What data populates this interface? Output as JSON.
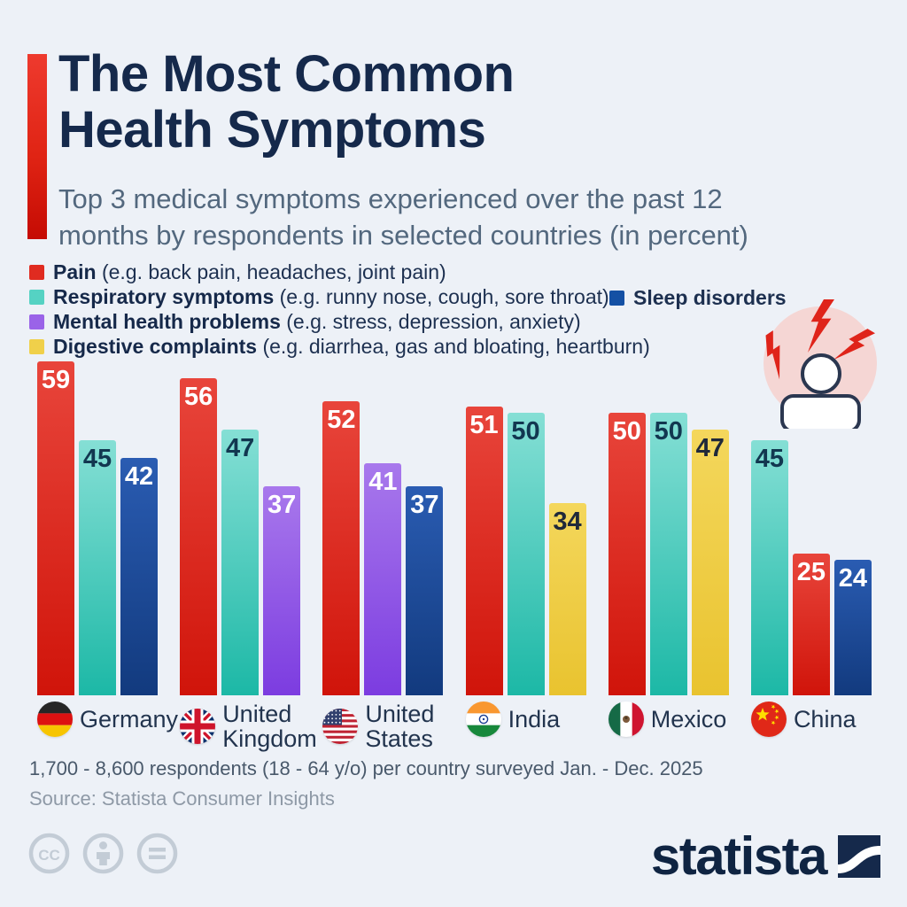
{
  "header": {
    "title_line1": "The Most Common",
    "title_line2": "Health Symptoms",
    "subtitle": "Top 3 medical symptoms experienced over the past 12\nmonths by respondents in selected countries (in percent)"
  },
  "legend": {
    "items": [
      {
        "label": "Pain",
        "desc": "(e.g. back pain, headaches, joint pain)",
        "color": "#e02b20"
      },
      {
        "label": "Respiratory symptoms",
        "desc": "(e.g. runny nose, cough, sore throat)",
        "color": "#55d2c3"
      },
      {
        "label": "Mental health problems",
        "desc": "(e.g. stress, depression, anxiety)",
        "color": "#9a63e8"
      },
      {
        "label": "Digestive complaints",
        "desc": "(e.g. diarrhea, gas and bloating, heartburn)",
        "color": "#f0d04a"
      }
    ],
    "right_item": {
      "label": "Sleep disorders",
      "color": "#1450a4"
    }
  },
  "chart_data": {
    "type": "bar",
    "unit": "percent",
    "ylim": [
      0,
      59
    ],
    "series_colors": {
      "Pain": {
        "top": "#e8453b",
        "bottom": "#d0140a",
        "text": "#ffffff"
      },
      "Respiratory symptoms": {
        "top": "#85dfd5",
        "bottom": "#1cb8a6",
        "text": "#123750"
      },
      "Mental health problems": {
        "top": "#a878ec",
        "bottom": "#7c3ce0",
        "text": "#ffffff"
      },
      "Digestive complaints": {
        "top": "#f4d75c",
        "bottom": "#e9c32f",
        "text": "#20293a"
      },
      "Sleep disorders": {
        "top": "#2a5cb2",
        "bottom": "#123a7e",
        "text": "#ffffff"
      }
    },
    "groups": [
      {
        "country": "Germany",
        "flag": "de",
        "bars": [
          {
            "series": "Pain",
            "value": 59
          },
          {
            "series": "Respiratory symptoms",
            "value": 45
          },
          {
            "series": "Sleep disorders",
            "value": 42
          }
        ]
      },
      {
        "country": "United Kingdom",
        "flag": "gb",
        "bars": [
          {
            "series": "Pain",
            "value": 56
          },
          {
            "series": "Respiratory symptoms",
            "value": 47
          },
          {
            "series": "Mental health problems",
            "value": 37
          }
        ]
      },
      {
        "country": "United States",
        "flag": "us",
        "bars": [
          {
            "series": "Pain",
            "value": 52
          },
          {
            "series": "Mental health problems",
            "value": 41
          },
          {
            "series": "Sleep disorders",
            "value": 37
          }
        ]
      },
      {
        "country": "India",
        "flag": "in",
        "bars": [
          {
            "series": "Pain",
            "value": 51
          },
          {
            "series": "Respiratory symptoms",
            "value": 50
          },
          {
            "series": "Digestive complaints",
            "value": 34
          }
        ]
      },
      {
        "country": "Mexico",
        "flag": "mx",
        "bars": [
          {
            "series": "Pain",
            "value": 50
          },
          {
            "series": "Respiratory symptoms",
            "value": 50
          },
          {
            "series": "Digestive complaints",
            "value": 47
          }
        ]
      },
      {
        "country": "China",
        "flag": "cn",
        "bars": [
          {
            "series": "Respiratory symptoms",
            "value": 45
          },
          {
            "series": "Pain",
            "value": 25
          },
          {
            "series": "Sleep disorders",
            "value": 24
          }
        ]
      }
    ]
  },
  "footer": {
    "note": "1,700 - 8,600 respondents (18 - 64 y/o) per country surveyed Jan. - Dec. 2025",
    "source": "Source: Statista Consumer Insights",
    "brand": "statista"
  }
}
